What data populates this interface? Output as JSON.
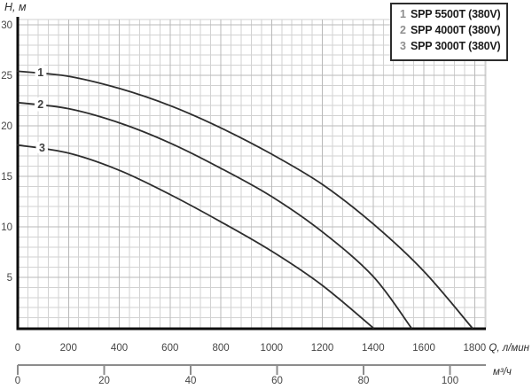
{
  "page": {
    "background": "#ffffff"
  },
  "chart_data": {
    "type": "line",
    "title": "",
    "ylabel": "H, м",
    "xlabel": "Q, л/мин",
    "xlabel_secondary": "м³/ч",
    "xlim": [
      0,
      1800
    ],
    "ylim": [
      0,
      30
    ],
    "grid": true,
    "legend_position": "top-right",
    "x_ticks": [
      0,
      200,
      400,
      600,
      800,
      1000,
      1200,
      1400,
      1600,
      1800
    ],
    "y_ticks": [
      30,
      25,
      20,
      15,
      10,
      5
    ],
    "x2_ticks": [
      0,
      20,
      40,
      60,
      80,
      100
    ],
    "series": [
      {
        "curve_label": "1",
        "name": "SPP 5500T (380V)",
        "points": [
          [
            0,
            25.4
          ],
          [
            200,
            24.9
          ],
          [
            400,
            23.7
          ],
          [
            600,
            22.0
          ],
          [
            800,
            19.8
          ],
          [
            1000,
            17.2
          ],
          [
            1200,
            14.2
          ],
          [
            1400,
            10.3
          ],
          [
            1600,
            5.6
          ],
          [
            1790,
            0
          ]
        ]
      },
      {
        "curve_label": "2",
        "name": "SPP 4000T (380V)",
        "points": [
          [
            0,
            22.3
          ],
          [
            200,
            21.7
          ],
          [
            400,
            20.3
          ],
          [
            600,
            18.3
          ],
          [
            800,
            15.8
          ],
          [
            1000,
            13.0
          ],
          [
            1200,
            9.5
          ],
          [
            1400,
            5.1
          ],
          [
            1550,
            0
          ]
        ]
      },
      {
        "curve_label": "3",
        "name": "SPP 3000T (380V)",
        "points": [
          [
            0,
            18.1
          ],
          [
            200,
            17.3
          ],
          [
            400,
            15.6
          ],
          [
            600,
            13.2
          ],
          [
            800,
            10.5
          ],
          [
            1000,
            7.6
          ],
          [
            1200,
            4.2
          ],
          [
            1400,
            0
          ]
        ]
      }
    ],
    "curve_labels": [
      {
        "text": "1",
        "q": 90
      },
      {
        "text": "2",
        "q": 90
      },
      {
        "text": "3",
        "q": 96
      }
    ]
  },
  "legend": {
    "items": [
      {
        "num": "1",
        "label": "SPP 5500T (380V)"
      },
      {
        "num": "2",
        "label": "SPP 4000T (380V)"
      },
      {
        "num": "3",
        "label": "SPP 3000T (380V)"
      }
    ]
  },
  "colors": {
    "curve": "#2d2d2d",
    "grid_minor": "#d2d2d2",
    "grid_major": "#b9b9b9",
    "axis": "#0d0d0d",
    "secondary_axis": "#8c8c8c",
    "tick_text": "#454545",
    "axis_label_text": "#2e2e2e",
    "curve_label_text": "#3f3f3f",
    "legend_num": "#8f8f8f",
    "legend_text": "#1c1c1c"
  }
}
